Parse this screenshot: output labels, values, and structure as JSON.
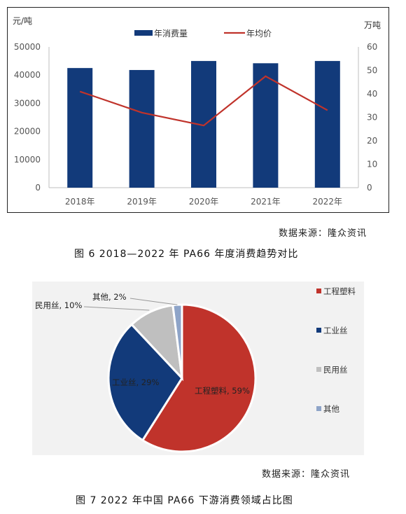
{
  "chart_data": [
    {
      "type": "bar",
      "categories": [
        "2018年",
        "2019年",
        "2020年",
        "2021年",
        "2022年"
      ],
      "series": [
        {
          "name": "年消费量",
          "kind": "bar",
          "axis": "left",
          "color": "#123a7a",
          "values": [
            42500,
            41800,
            45000,
            44200,
            45000
          ]
        },
        {
          "name": "年均价",
          "kind": "line",
          "axis": "right",
          "color": "#c0332b",
          "values": [
            41,
            32,
            26.5,
            47.5,
            33
          ]
        }
      ],
      "ylabel_left": "元/吨",
      "ylabel_right": "万吨",
      "ylim_left": [
        0,
        50000
      ],
      "ylim_right": [
        0,
        60
      ],
      "yticks_left": [
        "0",
        "10000",
        "20000",
        "30000",
        "40000",
        "50000"
      ],
      "yticks_right": [
        "0",
        "10",
        "20",
        "30",
        "40",
        "50",
        "60"
      ],
      "legend_position": "top-center",
      "grid": false
    },
    {
      "type": "pie",
      "slices": [
        {
          "label": "工程塑料",
          "value": 59,
          "color": "#c0332b",
          "data_label": "工程塑料, 59%"
        },
        {
          "label": "工业丝",
          "value": 29,
          "color": "#123a7a",
          "data_label": "工业丝, 29%"
        },
        {
          "label": "民用丝",
          "value": 10,
          "color": "#bfbfbf",
          "data_label": "民用丝, 10%"
        },
        {
          "label": "其他",
          "value": 2,
          "color": "#8ea4c8",
          "data_label": "其他, 2%"
        }
      ],
      "legend_position": "right"
    }
  ],
  "source1": "数据来源：隆众资讯",
  "caption1": "图 6  2018—2022 年 PA66 年度消费趋势对比",
  "source2": "数据来源：隆众资讯",
  "caption2": "图 7  2022 年中国 PA66 下游消费领域占比图"
}
